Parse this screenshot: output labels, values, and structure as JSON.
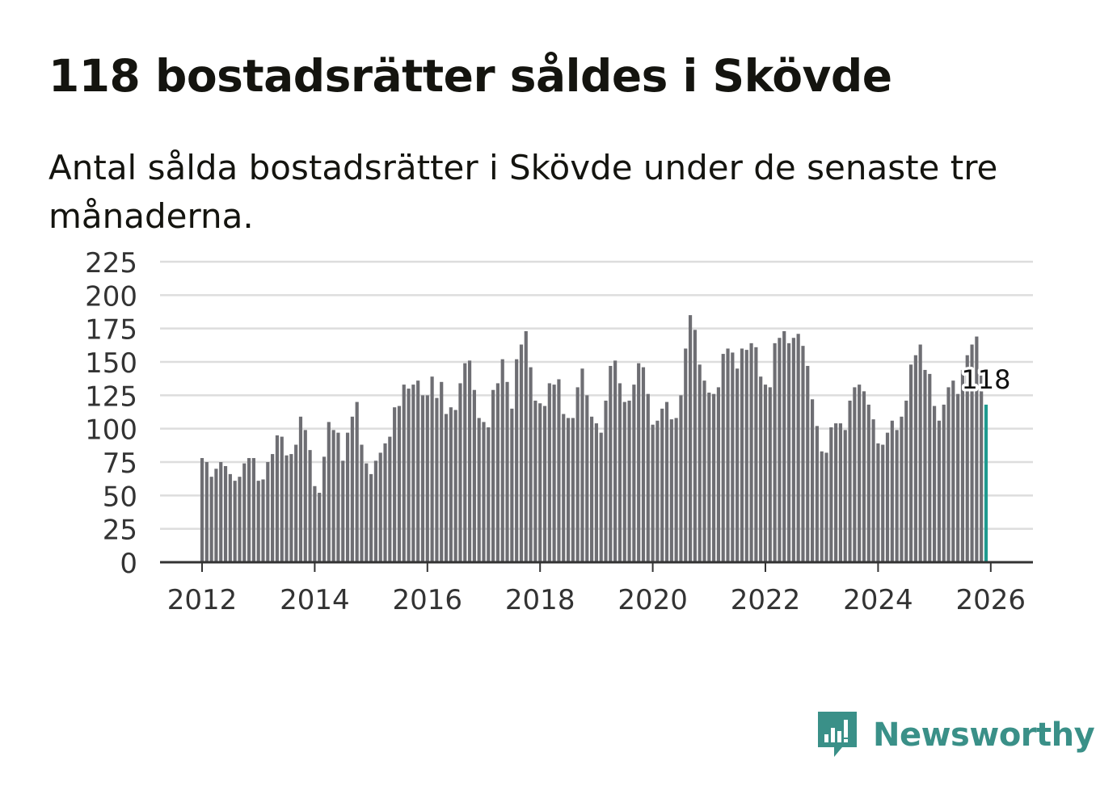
{
  "title": "118 bostadsrätter såldes i Skövde",
  "subtitle": "Antal sålda bostadsrätter i Skövde under de senaste tre månaderna.",
  "brand": {
    "name": "Newsworthy",
    "icon": "newsworthy-logo-icon",
    "color": "#3a9088"
  },
  "colors": {
    "bar": "#6e6e73",
    "highlight": "#1f9a8f",
    "grid": "#dddddd",
    "axis": "#333333"
  },
  "chart_data": {
    "type": "bar",
    "title": "118 bostadsrätter såldes i Skövde",
    "xlabel": "",
    "ylabel": "",
    "ylim": [
      0,
      225
    ],
    "yticks": [
      "0",
      "25",
      "50",
      "75",
      "100",
      "125",
      "150",
      "175",
      "200",
      "225"
    ],
    "xticks": [
      "2012",
      "2014",
      "2016",
      "2018",
      "2020",
      "2022",
      "2024",
      "2026"
    ],
    "x_start": "2012-01",
    "x_end": "2026-01",
    "grid": true,
    "highlight_label": "118",
    "values": [
      78,
      75,
      64,
      70,
      75,
      72,
      66,
      61,
      64,
      74,
      78,
      78,
      61,
      62,
      75,
      81,
      95,
      94,
      80,
      81,
      88,
      109,
      99,
      84,
      57,
      52,
      79,
      105,
      99,
      97,
      76,
      97,
      109,
      120,
      88,
      74,
      66,
      76,
      82,
      89,
      94,
      116,
      117,
      133,
      130,
      133,
      136,
      125,
      125,
      139,
      123,
      135,
      111,
      116,
      114,
      134,
      149,
      151,
      129,
      108,
      105,
      101,
      129,
      134,
      152,
      135,
      115,
      152,
      163,
      173,
      146,
      121,
      119,
      117,
      134,
      133,
      137,
      111,
      108,
      108,
      131,
      145,
      125,
      109,
      104,
      97,
      121,
      147,
      151,
      134,
      120,
      121,
      133,
      149,
      146,
      126,
      103,
      106,
      115,
      120,
      107,
      108,
      125,
      160,
      185,
      174,
      148,
      136,
      127,
      126,
      131,
      156,
      160,
      157,
      145,
      160,
      159,
      164,
      161,
      139,
      133,
      131,
      164,
      168,
      173,
      164,
      168,
      171,
      162,
      147,
      122,
      102,
      83,
      82,
      101,
      104,
      104,
      99,
      121,
      131,
      133,
      128,
      118,
      107,
      89,
      88,
      97,
      106,
      99,
      109,
      121,
      148,
      155,
      163,
      144,
      141,
      117,
      106,
      118,
      131,
      136,
      126,
      144,
      155,
      163,
      169,
      142,
      118
    ]
  }
}
